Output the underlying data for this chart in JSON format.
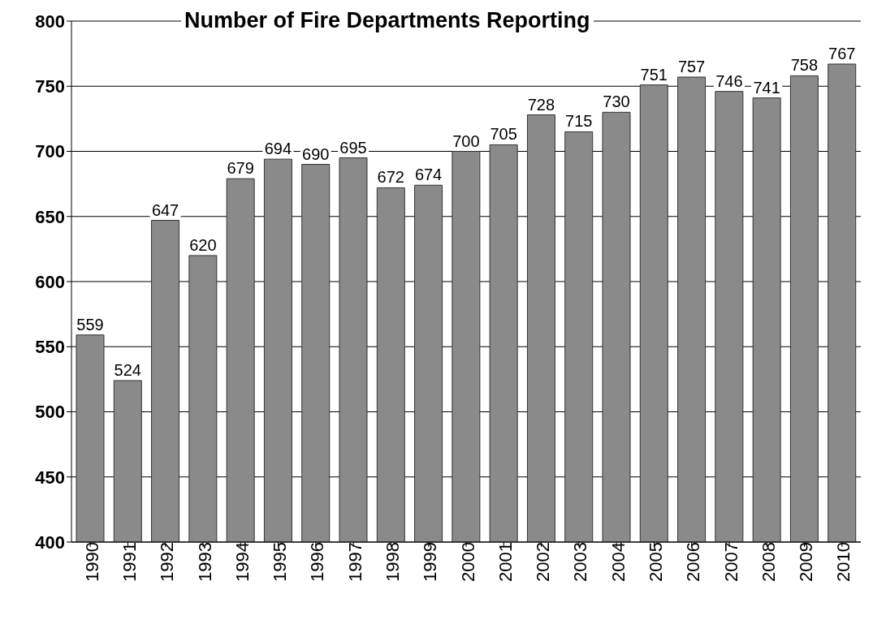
{
  "chart_data": {
    "type": "bar",
    "title": "Number of Fire Departments Reporting",
    "categories": [
      "1990",
      "1991",
      "1992",
      "1993",
      "1994",
      "1995",
      "1996",
      "1997",
      "1998",
      "1999",
      "2000",
      "2001",
      "2002",
      "2003",
      "2004",
      "2005",
      "2006",
      "2007",
      "2008",
      "2009",
      "2010"
    ],
    "values": [
      559,
      524,
      647,
      620,
      679,
      694,
      690,
      695,
      672,
      674,
      700,
      705,
      728,
      715,
      730,
      751,
      757,
      746,
      741,
      758,
      767
    ],
    "color": "#8a8a8a",
    "ylim": [
      400,
      800
    ],
    "yticks": [
      400,
      450,
      500,
      550,
      600,
      650,
      700,
      750,
      800
    ],
    "grid": "y",
    "data_labels": true
  }
}
